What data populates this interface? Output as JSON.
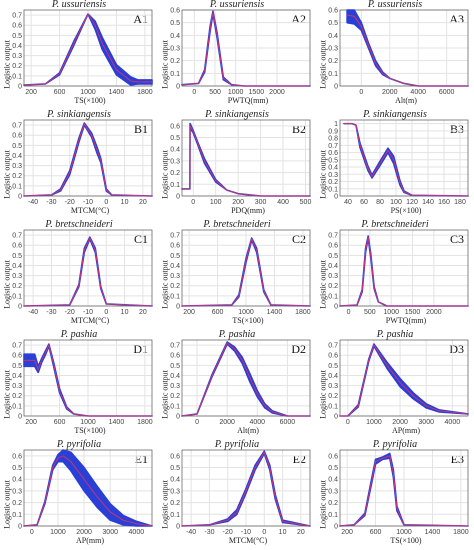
{
  "colors": {
    "band": "#2a3fd6",
    "line": "#d6336c",
    "grid": "#e3e3e3",
    "axis": "#555555"
  },
  "chart_data": [
    {
      "id": "A1",
      "type": "area",
      "title": "P. ussuriensis",
      "xlabel": "TS(×100)",
      "ylabel": "Logistic output",
      "xlim": [
        100,
        1900
      ],
      "ylim": [
        0,
        0.75
      ],
      "xticks": [
        200,
        600,
        1000,
        1400,
        1800
      ],
      "yticks": [
        0,
        0.1,
        0.2,
        0.3,
        0.4,
        0.5,
        0.6,
        0.7
      ],
      "x": [
        100,
        400,
        600,
        800,
        1000,
        1100,
        1200,
        1400,
        1600,
        1700,
        1900
      ],
      "y": [
        0.01,
        0.02,
        0.12,
        0.42,
        0.71,
        0.6,
        0.42,
        0.16,
        0.05,
        0.04,
        0.04
      ],
      "band": [
        0,
        0,
        0.01,
        0.02,
        0,
        0.04,
        0.06,
        0.05,
        0.04,
        0.02,
        0.02
      ]
    },
    {
      "id": "A2",
      "type": "area",
      "title": "P. ussuriensis",
      "xlabel": "PWTQ(mm)",
      "ylabel": "Logistic output",
      "xlim": [
        -300,
        2800
      ],
      "ylim": [
        0,
        0.6
      ],
      "xticks": [
        0,
        500,
        1000,
        1500,
        2000
      ],
      "yticks": [
        0,
        0.1,
        0.2,
        0.3,
        0.4,
        0.5,
        0.6
      ],
      "x": [
        -300,
        100,
        250,
        380,
        450,
        550,
        700,
        900,
        1200,
        2800
      ],
      "y": [
        0.01,
        0.02,
        0.12,
        0.45,
        0.58,
        0.4,
        0.06,
        0.01,
        0,
        0
      ],
      "band": [
        0,
        0,
        0.01,
        0.02,
        0.01,
        0.02,
        0.01,
        0,
        0,
        0
      ]
    },
    {
      "id": "A3",
      "type": "area",
      "title": "P. ussuriensis",
      "xlabel": "Alt(m)",
      "ylabel": "Logistic output",
      "xlim": [
        -1500,
        7500
      ],
      "ylim": [
        0,
        0.6
      ],
      "xticks": [
        0,
        2000,
        4000,
        6000
      ],
      "yticks": [
        0,
        0.1,
        0.2,
        0.3,
        0.4,
        0.5,
        0.6
      ],
      "x": [
        -1000,
        -500,
        0,
        500,
        1000,
        1500,
        2000,
        3000,
        4000,
        7500
      ],
      "y": [
        0.56,
        0.55,
        0.47,
        0.32,
        0.18,
        0.1,
        0.06,
        0.02,
        0,
        0
      ],
      "band": [
        0.06,
        0.06,
        0.03,
        0.02,
        0.02,
        0.01,
        0,
        0,
        0,
        0
      ]
    },
    {
      "id": "B1",
      "type": "area",
      "title": "P. sinkiangensis",
      "xlabel": "MTCM(°C)",
      "ylabel": "Logistic output",
      "xlim": [
        -45,
        25
      ],
      "ylim": [
        0,
        0.75
      ],
      "xticks": [
        -40,
        -30,
        -20,
        -10,
        0,
        10,
        20
      ],
      "yticks": [
        0,
        0.1,
        0.2,
        0.3,
        0.4,
        0.5,
        0.6,
        0.7
      ],
      "x": [
        -45,
        -30,
        -25,
        -20,
        -15,
        -12,
        -8,
        -5,
        -3,
        0,
        3,
        25
      ],
      "y": [
        0,
        0.01,
        0.06,
        0.23,
        0.55,
        0.71,
        0.6,
        0.45,
        0.35,
        0.06,
        0.01,
        0
      ],
      "band": [
        0,
        0,
        0.01,
        0.02,
        0.02,
        0.01,
        0.02,
        0.03,
        0.02,
        0.01,
        0,
        0
      ]
    },
    {
      "id": "B2",
      "type": "area",
      "title": "P. sinkiangensis",
      "xlabel": "PDQ(mm)",
      "ylabel": "Logistic output",
      "xlim": [
        -50,
        520
      ],
      "ylim": [
        0,
        0.65
      ],
      "xticks": [
        0,
        100,
        200,
        300,
        400,
        500
      ],
      "yticks": [
        0,
        0.1,
        0.2,
        0.3,
        0.4,
        0.5,
        0.6
      ],
      "x": [
        -50,
        -15,
        -14,
        0,
        20,
        50,
        100,
        150,
        200,
        300,
        520
      ],
      "y": [
        0.06,
        0.06,
        0.6,
        0.55,
        0.45,
        0.3,
        0.13,
        0.05,
        0.02,
        0,
        0
      ],
      "band": [
        0,
        0,
        0.02,
        0.01,
        0.01,
        0.02,
        0.01,
        0,
        0,
        0,
        0
      ]
    },
    {
      "id": "B3",
      "type": "area",
      "title": "P. sinkiangensis",
      "xlabel": "PS(×100)",
      "ylabel": "Logistic output",
      "xlim": [
        30,
        190
      ],
      "ylim": [
        0,
        1.05
      ],
      "xticks": [
        40,
        60,
        80,
        100,
        120,
        140,
        160,
        180
      ],
      "yticks": [
        0,
        0.1,
        0.2,
        0.3,
        0.4,
        0.5,
        0.6,
        0.7,
        0.8,
        0.9,
        1
      ],
      "x": [
        35,
        45,
        50,
        55,
        65,
        70,
        80,
        90,
        97,
        105,
        110,
        120,
        190
      ],
      "y": [
        1,
        1,
        0.98,
        0.7,
        0.38,
        0.27,
        0.45,
        0.63,
        0.5,
        0.18,
        0.06,
        0.01,
        0
      ],
      "band": [
        0,
        0,
        0,
        0.03,
        0.03,
        0.02,
        0.03,
        0.03,
        0.05,
        0.03,
        0.01,
        0,
        0
      ]
    },
    {
      "id": "C1",
      "type": "area",
      "title": "P. bretschneideri",
      "xlabel": "MTCM(°C)",
      "ylabel": "Logistic output",
      "xlim": [
        -45,
        25
      ],
      "ylim": [
        0,
        0.75
      ],
      "xticks": [
        -40,
        -30,
        -20,
        -10,
        0,
        10,
        20
      ],
      "yticks": [
        0,
        0.1,
        0.2,
        0.3,
        0.4,
        0.5,
        0.6,
        0.7
      ],
      "x": [
        -45,
        -20,
        -15,
        -12,
        -9,
        -6,
        -3,
        0,
        25
      ],
      "y": [
        0,
        0.01,
        0.2,
        0.55,
        0.67,
        0.55,
        0.18,
        0.02,
        0
      ],
      "band": [
        0,
        0,
        0.01,
        0.02,
        0.01,
        0.02,
        0.01,
        0,
        0
      ]
    },
    {
      "id": "C2",
      "type": "area",
      "title": "P. bretschneideri",
      "xlabel": "TS(×100)",
      "ylabel": "Logistic output",
      "xlim": [
        100,
        1900
      ],
      "ylim": [
        0,
        0.75
      ],
      "xticks": [
        200,
        600,
        1000,
        1400,
        1800
      ],
      "yticks": [
        0,
        0.1,
        0.2,
        0.3,
        0.4,
        0.5,
        0.6,
        0.7
      ],
      "x": [
        100,
        800,
        900,
        1000,
        1080,
        1150,
        1250,
        1350,
        1900
      ],
      "y": [
        0,
        0.01,
        0.1,
        0.45,
        0.66,
        0.55,
        0.15,
        0.01,
        0
      ],
      "band": [
        0,
        0,
        0.01,
        0.02,
        0.01,
        0.02,
        0.01,
        0,
        0
      ]
    },
    {
      "id": "C3",
      "type": "area",
      "title": "P. bretschneideri",
      "xlabel": "PWTQ(mm)",
      "ylabel": "Logistic output",
      "xlim": [
        -200,
        2800
      ],
      "ylim": [
        0,
        0.75
      ],
      "xticks": [
        0,
        500,
        1000,
        1500,
        2000
      ],
      "yticks": [
        0,
        0.1,
        0.2,
        0.3,
        0.4,
        0.5,
        0.6,
        0.7
      ],
      "x": [
        -200,
        200,
        320,
        400,
        460,
        520,
        600,
        700,
        900,
        2800
      ],
      "y": [
        0,
        0.01,
        0.15,
        0.55,
        0.68,
        0.5,
        0.18,
        0.04,
        0,
        0
      ],
      "band": [
        0,
        0,
        0.01,
        0.02,
        0.01,
        0.02,
        0.01,
        0,
        0,
        0
      ]
    },
    {
      "id": "D1",
      "type": "area",
      "title": "P. pashia",
      "xlabel": "TS(×100)",
      "ylabel": "Logistic output",
      "xlim": [
        100,
        1900
      ],
      "ylim": [
        0,
        0.75
      ],
      "xticks": [
        200,
        600,
        1000,
        1400,
        1800
      ],
      "yticks": [
        0,
        0.1,
        0.2,
        0.3,
        0.4,
        0.5,
        0.6,
        0.7
      ],
      "x": [
        100,
        250,
        300,
        350,
        400,
        450,
        520,
        600,
        700,
        800,
        1000,
        1900
      ],
      "y": [
        0.55,
        0.55,
        0.46,
        0.55,
        0.62,
        0.7,
        0.5,
        0.25,
        0.08,
        0.02,
        0,
        0
      ],
      "band": [
        0.06,
        0.06,
        0.03,
        0.02,
        0.02,
        0.01,
        0.02,
        0.02,
        0.01,
        0,
        0,
        0
      ]
    },
    {
      "id": "D2",
      "type": "area",
      "title": "P. pashia",
      "xlabel": "Alt(m)",
      "ylabel": "Logistic output",
      "xlim": [
        -1000,
        7500
      ],
      "ylim": [
        0,
        0.75
      ],
      "xticks": [
        0,
        2000,
        4000,
        6000
      ],
      "yticks": [
        0,
        0.1,
        0.2,
        0.3,
        0.4,
        0.5,
        0.6,
        0.7
      ],
      "x": [
        -1000,
        0,
        1000,
        2000,
        2500,
        3000,
        3500,
        4000,
        4500,
        5000,
        6000,
        7500
      ],
      "y": [
        0,
        0.02,
        0.4,
        0.72,
        0.66,
        0.55,
        0.38,
        0.22,
        0.1,
        0.04,
        0,
        0
      ],
      "band": [
        0,
        0,
        0.01,
        0.01,
        0.02,
        0.03,
        0.04,
        0.03,
        0.02,
        0.01,
        0,
        0
      ]
    },
    {
      "id": "D3",
      "type": "area",
      "title": "P. pashia",
      "xlabel": "AP(mm)",
      "ylabel": "Logistic output",
      "xlim": [
        -300,
        4600
      ],
      "ylim": [
        0,
        0.75
      ],
      "xticks": [
        0,
        1000,
        2000,
        3000,
        4000
      ],
      "yticks": [
        0,
        0.1,
        0.2,
        0.3,
        0.4,
        0.5,
        0.6,
        0.7
      ],
      "x": [
        -300,
        0,
        400,
        800,
        1000,
        1500,
        2000,
        2500,
        3000,
        3500,
        4600
      ],
      "y": [
        0,
        0,
        0.1,
        0.55,
        0.7,
        0.5,
        0.33,
        0.2,
        0.1,
        0.05,
        0.02
      ],
      "band": [
        0,
        0,
        0.01,
        0.01,
        0.01,
        0.03,
        0.04,
        0.03,
        0.02,
        0.01,
        0
      ]
    },
    {
      "id": "E1",
      "type": "area",
      "title": "P. pyrifolia",
      "xlabel": "AP(mm)",
      "ylabel": "Logistic output",
      "xlim": [
        -300,
        4600
      ],
      "ylim": [
        0,
        0.65
      ],
      "xticks": [
        0,
        1000,
        2000,
        3000,
        4000
      ],
      "yticks": [
        0,
        0.1,
        0.2,
        0.3,
        0.4,
        0.5,
        0.6
      ],
      "x": [
        -300,
        200,
        500,
        800,
        1000,
        1200,
        1500,
        2000,
        2500,
        3000,
        3500,
        4000,
        4600
      ],
      "y": [
        0,
        0.01,
        0.2,
        0.5,
        0.58,
        0.6,
        0.55,
        0.4,
        0.25,
        0.12,
        0.05,
        0.02,
        0
      ],
      "band": [
        0,
        0,
        0.01,
        0.02,
        0.03,
        0.05,
        0.08,
        0.1,
        0.09,
        0.07,
        0.04,
        0.02,
        0
      ]
    },
    {
      "id": "E2",
      "type": "area",
      "title": "P. pyrifolia",
      "xlabel": "MTCM(°C)",
      "ylabel": "Logistic output",
      "xlim": [
        -45,
        25
      ],
      "ylim": [
        0,
        0.65
      ],
      "xticks": [
        -40,
        -30,
        -20,
        -10,
        0,
        10,
        20
      ],
      "yticks": [
        0,
        0.1,
        0.2,
        0.3,
        0.4,
        0.5,
        0.6
      ],
      "x": [
        -45,
        -30,
        -20,
        -15,
        -10,
        -5,
        0,
        3,
        6,
        10,
        25
      ],
      "y": [
        0,
        0.01,
        0.05,
        0.12,
        0.3,
        0.5,
        0.63,
        0.5,
        0.25,
        0.04,
        0
      ],
      "band": [
        0,
        0,
        0.01,
        0.02,
        0.02,
        0.02,
        0.01,
        0.02,
        0.02,
        0.01,
        0
      ]
    },
    {
      "id": "E3",
      "type": "area",
      "title": "P. pyrifolia",
      "xlabel": "TS(×100)",
      "ylabel": "Logistic output",
      "xlim": [
        100,
        1900
      ],
      "ylim": [
        0,
        0.65
      ],
      "xticks": [
        200,
        600,
        1000,
        1400,
        1800
      ],
      "yticks": [
        0,
        0.1,
        0.2,
        0.3,
        0.4,
        0.5,
        0.6
      ],
      "x": [
        100,
        300,
        450,
        550,
        600,
        700,
        800,
        850,
        900,
        1000,
        1900
      ],
      "y": [
        0,
        0.01,
        0.1,
        0.4,
        0.55,
        0.58,
        0.6,
        0.45,
        0.15,
        0.01,
        0
      ],
      "band": [
        0,
        0,
        0.01,
        0.02,
        0.02,
        0.01,
        0.02,
        0.03,
        0.02,
        0,
        0
      ]
    }
  ]
}
